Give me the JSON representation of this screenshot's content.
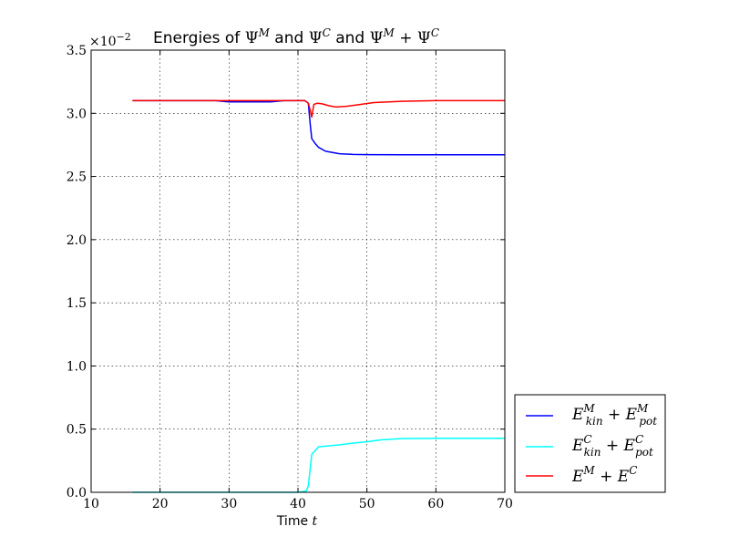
{
  "chart_data": {
    "type": "line",
    "title_parts": {
      "prefix": "Energies of ",
      "psi": "Ψ",
      "sup_m": "M",
      "sup_c": "C",
      "and": " and ",
      "plus": " + "
    },
    "xlabel_parts": {
      "text": "Time ",
      "var": "t"
    },
    "ylabel": "",
    "y_multiplier": {
      "base": "×10",
      "exp": "−2"
    },
    "xlim": [
      10,
      70
    ],
    "ylim": [
      0.0,
      3.5
    ],
    "xticks": [
      10,
      20,
      30,
      40,
      50,
      60,
      70
    ],
    "yticks": [
      0.0,
      0.5,
      1.0,
      1.5,
      2.0,
      2.5,
      3.0,
      3.5
    ],
    "xtick_labels": [
      "10",
      "20",
      "30",
      "40",
      "50",
      "60",
      "70"
    ],
    "ytick_labels": [
      "0.0",
      "0.5",
      "1.0",
      "1.5",
      "2.0",
      "2.5",
      "3.0",
      "3.5"
    ],
    "grid": true,
    "legend_placement": "lower-right-outside",
    "series": [
      {
        "key": "m",
        "color": "#0000ff",
        "legend": {
          "E": "E",
          "sub1": "kin",
          "sup": "M",
          "plus": " + ",
          "sub2": "pot"
        },
        "x": [
          16,
          20,
          25,
          28,
          30,
          32,
          34,
          36,
          38,
          40,
          41,
          41.5,
          41.8,
          42,
          42.5,
          43,
          44,
          46,
          48,
          50,
          55,
          60,
          65,
          70
        ],
        "y": [
          3.1,
          3.1,
          3.1,
          3.1,
          3.09,
          3.09,
          3.09,
          3.09,
          3.1,
          3.1,
          3.1,
          3.08,
          2.9,
          2.8,
          2.76,
          2.73,
          2.7,
          2.68,
          2.675,
          2.673,
          2.672,
          2.672,
          2.672,
          2.672
        ]
      },
      {
        "key": "c",
        "color": "#00ffff",
        "legend": {
          "E": "E",
          "sub1": "kin",
          "sup": "C",
          "plus": " + ",
          "sub2": "pot"
        },
        "x": [
          16,
          20,
          25,
          30,
          35,
          38,
          40,
          41.2,
          41.5,
          41.8,
          42,
          42.5,
          43,
          44,
          46,
          48,
          50,
          52,
          55,
          60,
          65,
          70
        ],
        "y": [
          0.0,
          0.0,
          0.0,
          0.0,
          0.0,
          0.0,
          0.0,
          0.01,
          0.05,
          0.2,
          0.3,
          0.33,
          0.36,
          0.365,
          0.375,
          0.39,
          0.4,
          0.415,
          0.425,
          0.428,
          0.428,
          0.428
        ]
      },
      {
        "key": "total",
        "color": "#ff0000",
        "legend": {
          "E1": "E",
          "sup1": "M",
          "plus": " + ",
          "E2": "E",
          "sup2": "C"
        },
        "x": [
          16,
          20,
          25,
          30,
          35,
          38,
          40,
          41,
          41.5,
          41.8,
          42,
          42.3,
          42.8,
          43.5,
          44.5,
          45.5,
          47,
          49,
          51,
          55,
          60,
          65,
          70
        ],
        "y": [
          3.1,
          3.1,
          3.1,
          3.1,
          3.1,
          3.1,
          3.1,
          3.1,
          3.08,
          3.02,
          2.97,
          3.07,
          3.08,
          3.075,
          3.06,
          3.05,
          3.055,
          3.07,
          3.085,
          3.095,
          3.1,
          3.1,
          3.1
        ]
      }
    ]
  }
}
